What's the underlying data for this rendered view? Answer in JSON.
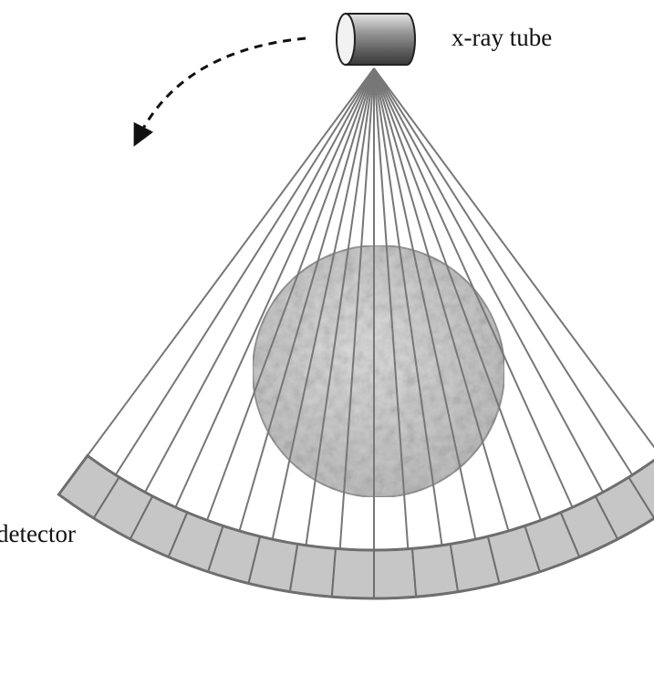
{
  "labels": {
    "tube": "x-ray tube",
    "detector": "detector"
  },
  "colors": {
    "ray": "#777777",
    "detector_fill": "#c6c6c6",
    "detector_stroke": "#6e6e6e",
    "object_fill": "#cfcfcf",
    "arrow": "#111111"
  },
  "icons": {
    "tube": "cylinder-icon",
    "rotation": "dashed-curved-arrow-icon"
  },
  "diagram": {
    "ray_count": 19,
    "detector_cells": 16
  }
}
